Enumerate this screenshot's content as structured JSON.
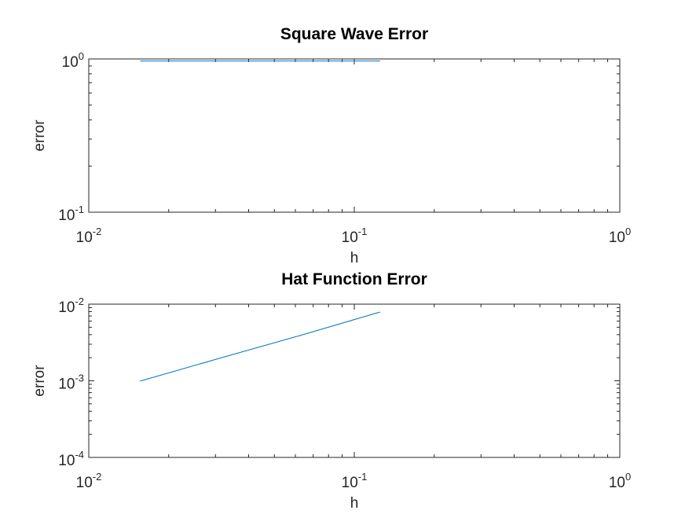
{
  "chart_data": [
    {
      "type": "line",
      "title": "Square Wave Error",
      "xlabel": "h",
      "ylabel": "error",
      "x_scale": "log",
      "y_scale": "log",
      "xlim": [
        0.01,
        1
      ],
      "ylim": [
        0.1,
        1
      ],
      "x_ticks": [
        {
          "value": 0.01,
          "base": "10",
          "exp": "-2"
        },
        {
          "value": 0.1,
          "base": "10",
          "exp": "-1"
        },
        {
          "value": 1,
          "base": "10",
          "exp": "0"
        }
      ],
      "y_ticks": [
        {
          "value": 0.1,
          "base": "10",
          "exp": "-1"
        },
        {
          "value": 1,
          "base": "10",
          "exp": "0"
        }
      ],
      "grid": false,
      "series": [
        {
          "color": "#0072BD",
          "x": [
            0.125,
            0.0625,
            0.03125,
            0.015625
          ],
          "y": [
            0.97,
            0.97,
            0.97,
            0.97
          ]
        }
      ]
    },
    {
      "type": "line",
      "title": "Hat Function Error",
      "xlabel": "h",
      "ylabel": "error",
      "x_scale": "log",
      "y_scale": "log",
      "xlim": [
        0.01,
        1
      ],
      "ylim": [
        0.0001,
        0.01
      ],
      "x_ticks": [
        {
          "value": 0.01,
          "base": "10",
          "exp": "-2"
        },
        {
          "value": 0.1,
          "base": "10",
          "exp": "-1"
        },
        {
          "value": 1,
          "base": "10",
          "exp": "0"
        }
      ],
      "y_ticks": [
        {
          "value": 0.0001,
          "base": "10",
          "exp": "-4"
        },
        {
          "value": 0.001,
          "base": "10",
          "exp": "-3"
        },
        {
          "value": 0.01,
          "base": "10",
          "exp": "-2"
        }
      ],
      "grid": false,
      "series": [
        {
          "color": "#0072BD",
          "x": [
            0.125,
            0.0625,
            0.03125,
            0.015625
          ],
          "y": [
            0.0079,
            0.0039,
            0.00198,
            0.00099
          ]
        }
      ]
    }
  ]
}
